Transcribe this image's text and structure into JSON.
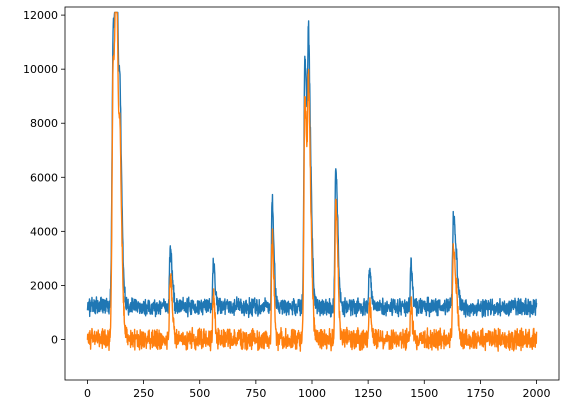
{
  "chart_data": {
    "type": "line",
    "title": "",
    "xlabel": "",
    "ylabel": "",
    "xlim": [
      -100,
      2100
    ],
    "ylim": [
      -1500,
      12300
    ],
    "xticks": [
      0,
      250,
      500,
      750,
      1000,
      1250,
      1500,
      1750,
      2000
    ],
    "yticks": [
      0,
      2000,
      4000,
      6000,
      8000,
      10000,
      12000
    ],
    "grid": false,
    "legend": "none",
    "series": [
      {
        "color": "#1f77b4",
        "baseline": 1200,
        "noise": 300,
        "x_range": [
          0,
          2000
        ],
        "peaks": [
          {
            "x": 115,
            "y": 11600,
            "width": 10
          },
          {
            "x": 128,
            "y": 8500,
            "width": 8
          },
          {
            "x": 145,
            "y": 5000,
            "width": 6
          },
          {
            "x": 368,
            "y": 3300,
            "width": 6
          },
          {
            "x": 560,
            "y": 2800,
            "width": 5
          },
          {
            "x": 822,
            "y": 5300,
            "width": 5
          },
          {
            "x": 968,
            "y": 10400,
            "width": 8
          },
          {
            "x": 985,
            "y": 7800,
            "width": 7
          },
          {
            "x": 1105,
            "y": 6300,
            "width": 6
          },
          {
            "x": 1630,
            "y": 4500,
            "width": 8
          },
          {
            "x": 1255,
            "y": 2600,
            "width": 5
          },
          {
            "x": 1440,
            "y": 2800,
            "width": 4
          }
        ]
      },
      {
        "color": "#ff7f0e",
        "baseline": 0,
        "noise": 350,
        "x_range": [
          0,
          2000
        ],
        "peaks": [
          {
            "x": 115,
            "y": 10300,
            "width": 10
          },
          {
            "x": 128,
            "y": 7000,
            "width": 8
          },
          {
            "x": 145,
            "y": 3500,
            "width": 6
          },
          {
            "x": 368,
            "y": 2300,
            "width": 6
          },
          {
            "x": 560,
            "y": 1600,
            "width": 5
          },
          {
            "x": 822,
            "y": 3900,
            "width": 5
          },
          {
            "x": 968,
            "y": 8800,
            "width": 8
          },
          {
            "x": 985,
            "y": 6200,
            "width": 7
          },
          {
            "x": 1105,
            "y": 5000,
            "width": 6
          },
          {
            "x": 1630,
            "y": 3300,
            "width": 8
          },
          {
            "x": 1255,
            "y": 1300,
            "width": 5
          },
          {
            "x": 1440,
            "y": 1200,
            "width": 4
          }
        ]
      }
    ]
  }
}
